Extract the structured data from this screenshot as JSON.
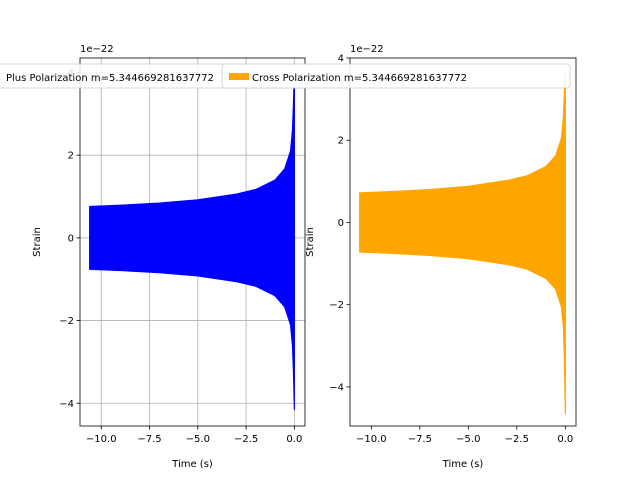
{
  "chart_data": [
    {
      "type": "line",
      "xlabel": "Time (s)",
      "ylabel": "Strain",
      "y_offset_label": "1e−22",
      "xlim": [
        -11.1,
        0.55
      ],
      "ylim": [
        -4.55,
        4.35
      ],
      "x_ticks": [
        -10.0,
        -7.5,
        -5.0,
        -2.5,
        0.0
      ],
      "x_tick_labels": [
        "−10.0",
        "−7.5",
        "−5.0",
        "−2.5",
        "0.0"
      ],
      "y_ticks": [
        -4,
        -2,
        0,
        2,
        4
      ],
      "y_tick_labels": [
        "−4",
        "−2",
        "0",
        "2",
        "4"
      ],
      "grid": true,
      "legend_position": "upper-left",
      "series": [
        {
          "name": "Plus Polarization m=5.344669281637772",
          "color": "#0000ff",
          "envelope": {
            "x": [
              -10.6,
              -9.0,
              -7.0,
              -5.0,
              -3.0,
              -2.0,
              -1.0,
              -0.5,
              -0.2,
              -0.1,
              -0.05,
              0.0
            ],
            "upper": [
              0.76,
              0.79,
              0.84,
              0.92,
              1.06,
              1.17,
              1.4,
              1.67,
              2.1,
              2.6,
              3.2,
              4.15
            ],
            "lower": [
              -0.76,
              -0.79,
              -0.84,
              -0.92,
              -1.06,
              -1.17,
              -1.4,
              -1.67,
              -2.1,
              -2.6,
              -3.2,
              -4.15
            ]
          }
        }
      ]
    },
    {
      "type": "line",
      "xlabel": "Time (s)",
      "ylabel": "Strain",
      "y_offset_label": "1e−22",
      "xlim": [
        -11.1,
        0.55
      ],
      "ylim": [
        -4.95,
        4.0
      ],
      "x_ticks": [
        -10.0,
        -7.5,
        -5.0,
        -2.5,
        0.0
      ],
      "x_tick_labels": [
        "−10.0",
        "−7.5",
        "−5.0",
        "−2.5",
        "0.0"
      ],
      "y_ticks": [
        -4,
        -2,
        0,
        2,
        4
      ],
      "y_tick_labels": [
        "−4",
        "−2",
        "0",
        "2",
        "4"
      ],
      "grid": false,
      "legend_position": "upper-left",
      "series": [
        {
          "name": "Cross Polarization m=5.344669281637772",
          "color": "#ffa500",
          "envelope": {
            "x": [
              -10.6,
              -9.0,
              -7.0,
              -5.0,
              -3.0,
              -2.0,
              -1.0,
              -0.5,
              -0.2,
              -0.1,
              -0.05,
              0.0
            ],
            "upper": [
              0.72,
              0.75,
              0.8,
              0.88,
              1.02,
              1.13,
              1.36,
              1.62,
              2.05,
              2.55,
              3.15,
              3.6
            ],
            "lower": [
              -0.72,
              -0.75,
              -0.8,
              -0.88,
              -1.02,
              -1.13,
              -1.36,
              -1.62,
              -2.05,
              -2.55,
              -3.3,
              -4.65
            ]
          }
        }
      ]
    }
  ]
}
